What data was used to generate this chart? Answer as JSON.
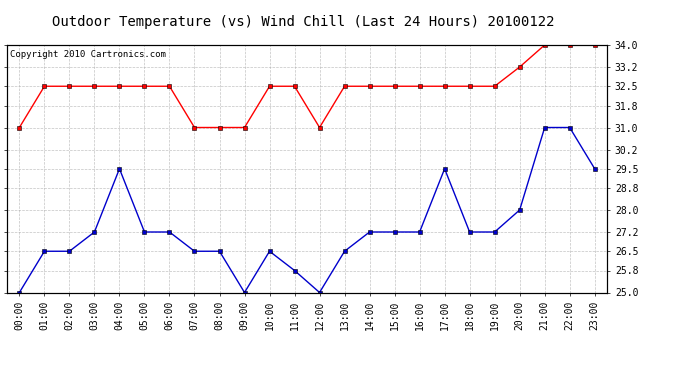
{
  "title": "Outdoor Temperature (vs) Wind Chill (Last 24 Hours) 20100122",
  "copyright_text": "Copyright 2010 Cartronics.com",
  "x_labels": [
    "00:00",
    "01:00",
    "02:00",
    "03:00",
    "04:00",
    "05:00",
    "06:00",
    "07:00",
    "08:00",
    "09:00",
    "10:00",
    "11:00",
    "12:00",
    "13:00",
    "14:00",
    "15:00",
    "16:00",
    "17:00",
    "18:00",
    "19:00",
    "20:00",
    "21:00",
    "22:00",
    "23:00"
  ],
  "red_line": [
    31.0,
    32.5,
    32.5,
    32.5,
    32.5,
    32.5,
    32.5,
    31.0,
    31.0,
    31.0,
    32.5,
    32.5,
    31.0,
    32.5,
    32.5,
    32.5,
    32.5,
    32.5,
    32.5,
    32.5,
    33.2,
    34.0,
    34.0,
    34.0
  ],
  "blue_line": [
    25.0,
    26.5,
    26.5,
    27.2,
    29.5,
    27.2,
    27.2,
    26.5,
    26.5,
    25.0,
    26.5,
    25.8,
    25.0,
    26.5,
    27.2,
    27.2,
    27.2,
    29.5,
    27.2,
    27.2,
    28.0,
    31.0,
    31.0,
    29.5
  ],
  "red_color": "#ff0000",
  "blue_color": "#0000cc",
  "ylim_min": 25.0,
  "ylim_max": 34.0,
  "yticks": [
    25.0,
    25.8,
    26.5,
    27.2,
    28.0,
    28.8,
    29.5,
    30.2,
    31.0,
    31.8,
    32.5,
    33.2,
    34.0
  ],
  "grid_color": "#aaaaaa",
  "background_color": "#ffffff",
  "title_fontsize": 10,
  "copyright_fontsize": 6.5,
  "tick_fontsize": 7,
  "marker": "s",
  "marker_size": 2.5,
  "linewidth": 1.0
}
